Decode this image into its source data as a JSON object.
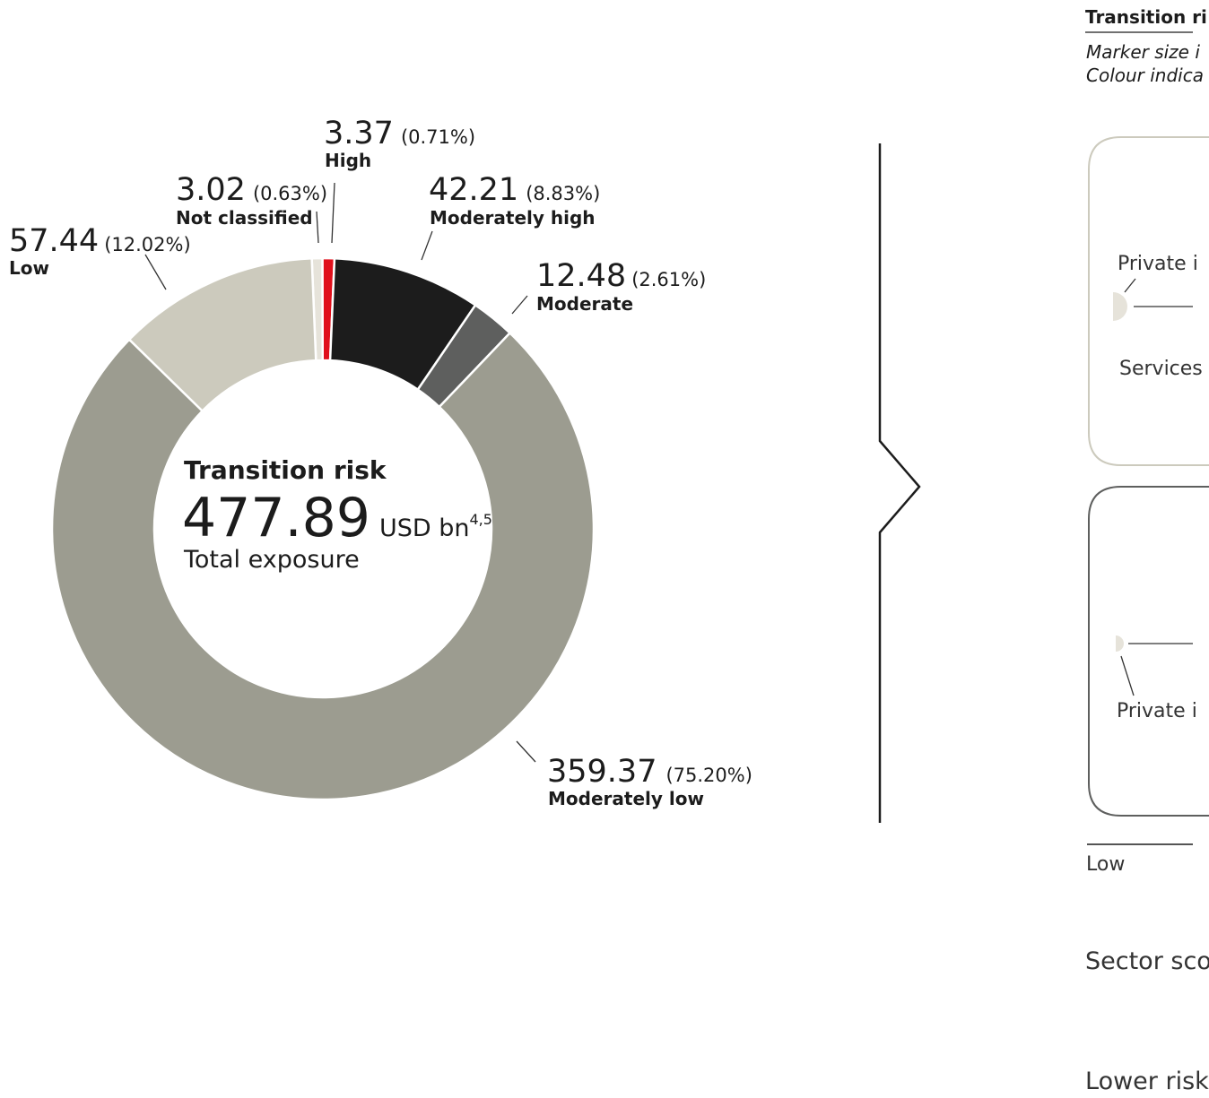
{
  "chart_data": {
    "type": "pie",
    "title": "Transition risk",
    "total": "477.89",
    "unit": "USD bn",
    "unit_footnote": "4,5",
    "subtitle": "Total exposure",
    "slices": [
      {
        "label": "Not classified",
        "value": 3.02,
        "value_text": "3.02",
        "percent_text": "(0.63%)",
        "color": "#e6e3da"
      },
      {
        "label": "High",
        "value": 3.37,
        "value_text": "3.37",
        "percent_text": "(0.71%)",
        "color": "#e0101c"
      },
      {
        "label": "Moderately high",
        "value": 42.21,
        "value_text": "42.21",
        "percent_text": "(8.83%)",
        "color": "#1c1c1c"
      },
      {
        "label": "Moderate",
        "value": 12.48,
        "value_text": "12.48",
        "percent_text": "(2.61%)",
        "color": "#5e5f5e"
      },
      {
        "label": "Moderately low",
        "value": 359.37,
        "value_text": "359.37",
        "percent_text": "(75.20%)",
        "color": "#9c9c90"
      },
      {
        "label": "Low",
        "value": 57.44,
        "value_text": "57.44",
        "percent_text": "(12.02%)",
        "color": "#cccabd"
      }
    ]
  },
  "right_panel": {
    "title": "Transition ri",
    "note_line1": "Marker size i",
    "note_line2": "Colour indica",
    "box1_label_top": "Private i",
    "box1_label_bottom": "Services",
    "box2_label": "Private i",
    "axis_low": "Low",
    "sector_label": "Sector sco",
    "lower_risk_label": "Lower risk"
  }
}
